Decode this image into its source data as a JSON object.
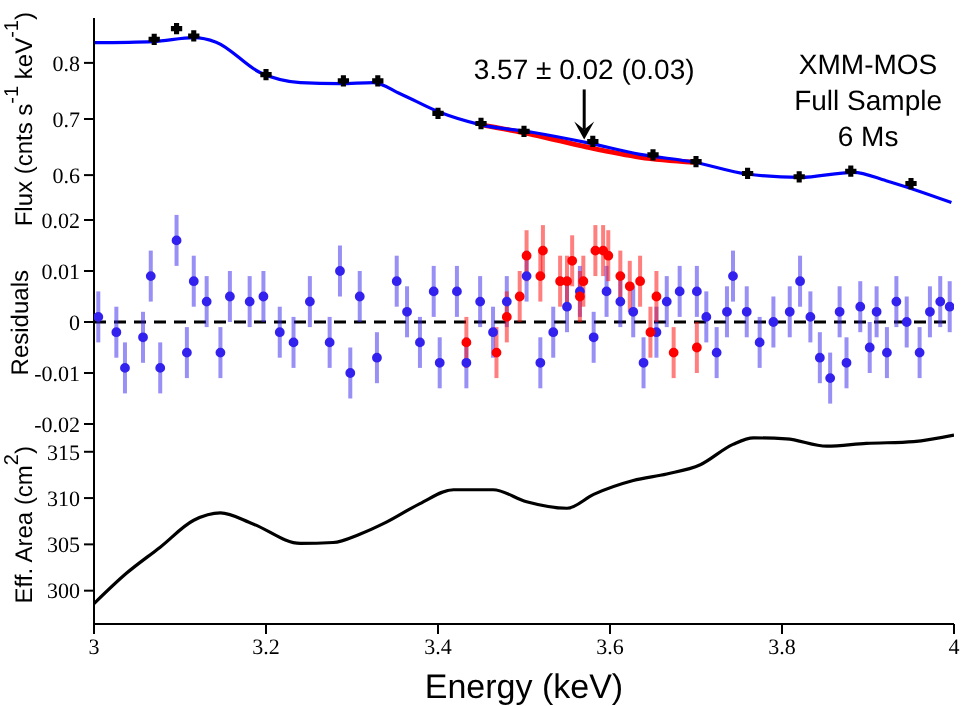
{
  "chart_data": [
    {
      "type": "line",
      "ylabel": "Flux (cnts s$^{-1}$ keV$^{-1}$)",
      "xlim": [
        3,
        4
      ],
      "xticks": [
        3,
        3.2,
        3.4,
        3.6,
        3.8,
        4
      ],
      "ylim": [
        0.52,
        0.88
      ],
      "yticks": [
        0.6,
        0.7,
        0.8
      ],
      "tick_labels": "y",
      "annotations": [
        {
          "text": "3.57 ± 0.02 (0.03)",
          "x": 3.57,
          "y": 0.66
        },
        "XMM-MOS",
        "Full Sample",
        "6 Ms"
      ],
      "series": [
        {
          "type": "scatter",
          "marker": "cross",
          "color": "#000000",
          "x": [
            3.07,
            3.096,
            3.116,
            3.2,
            3.29,
            3.33,
            3.4,
            3.45,
            3.5,
            3.58,
            3.65,
            3.7,
            3.76,
            3.82,
            3.88,
            3.95
          ],
          "values": [
            0.842,
            0.861,
            0.848,
            0.779,
            0.768,
            0.768,
            0.71,
            0.692,
            0.678,
            0.66,
            0.636,
            0.624,
            0.603,
            0.597,
            0.607,
            0.585
          ]
        },
        {
          "color": "#ff0000",
          "x": [
            3.449,
            3.511,
            3.573,
            3.635,
            3.698
          ],
          "values": [
            0.69,
            0.672,
            0.65,
            0.632,
            0.623
          ]
        },
        {
          "color": "#0000ff",
          "x": [
            3.0,
            3.069,
            3.116,
            3.142,
            3.193,
            3.24,
            3.286,
            3.325,
            3.356,
            3.402,
            3.449,
            3.511,
            3.573,
            3.635,
            3.698,
            3.759,
            3.821,
            3.883,
            3.921,
            3.997
          ],
          "values": [
            0.836,
            0.838,
            0.845,
            0.837,
            0.783,
            0.765,
            0.763,
            0.765,
            0.745,
            0.712,
            0.69,
            0.676,
            0.658,
            0.637,
            0.623,
            0.602,
            0.596,
            0.605,
            0.59,
            0.551
          ]
        }
      ]
    },
    {
      "type": "scatter",
      "marker": "circle",
      "ylabel": "Residuals",
      "xlim": [
        3,
        4
      ],
      "xticks": [
        3,
        3.2,
        3.4,
        3.6,
        3.8,
        4
      ],
      "ylim": [
        -0.02,
        0.02
      ],
      "yticks": [
        -0.02,
        -0.01,
        0,
        0.01,
        0.02
      ],
      "tick_labels": "y",
      "ref_lines": [
        {
          "axis": "y",
          "value": 0,
          "color": "#000000",
          "line_style": "dashed"
        }
      ],
      "series": [
        {
          "color": "#3322ee",
          "x": [
            3.005,
            3.026,
            3.036,
            3.057,
            3.066,
            3.077,
            3.096,
            3.108,
            3.116,
            3.131,
            3.147,
            3.158,
            3.181,
            3.197,
            3.216,
            3.232,
            3.251,
            3.274,
            3.286,
            3.298,
            3.309,
            3.329,
            3.352,
            3.364,
            3.379,
            3.395,
            3.402,
            3.422,
            3.433,
            3.449,
            3.464,
            3.48,
            3.503,
            3.519,
            3.534,
            3.55,
            3.565,
            3.581,
            3.596,
            3.612,
            3.627,
            3.639,
            3.654,
            3.666,
            3.681,
            3.701,
            3.712,
            3.724,
            3.736,
            3.743,
            3.759,
            3.774,
            3.79,
            3.809,
            3.821,
            3.833,
            3.844,
            3.856,
            3.867,
            3.875,
            3.891,
            3.902,
            3.91,
            3.922,
            3.933,
            3.945,
            3.96,
            3.972,
            3.984,
            3.995
          ],
          "values": [
            0.001,
            -0.002,
            -0.009,
            -0.003,
            0.009,
            -0.009,
            0.016,
            -0.006,
            0.008,
            0.004,
            -0.006,
            0.005,
            0.004,
            0.005,
            -0.002,
            -0.004,
            0.004,
            -0.004,
            0.01,
            -0.01,
            0.005,
            -0.007,
            0.008,
            0.002,
            -0.004,
            0.006,
            -0.008,
            0.006,
            -0.008,
            0.004,
            -0.002,
            0.004,
            0.009,
            -0.008,
            -0.002,
            0.003,
            0.006,
            -0.003,
            0.006,
            0.004,
            0.002,
            -0.008,
            -0.002,
            0.004,
            0.006,
            0.006,
            0.001,
            -0.006,
            0.002,
            0.009,
            0.002,
            -0.004,
            0,
            0.002,
            0.008,
            0.001,
            -0.007,
            -0.011,
            0.002,
            -0.008,
            0.003,
            -0.005,
            0.002,
            -0.006,
            0.004,
            0,
            -0.006,
            0.002,
            0.004,
            0.003
          ],
          "errors": [
            0.005,
            0.005,
            0.005,
            0.005,
            0.005,
            0.005,
            0.005,
            0.005,
            0.005,
            0.005,
            0.005,
            0.005,
            0.005,
            0.005,
            0.005,
            0.005,
            0.005,
            0.005,
            0.005,
            0.005,
            0.005,
            0.005,
            0.005,
            0.005,
            0.005,
            0.005,
            0.005,
            0.005,
            0.005,
            0.005,
            0.005,
            0.005,
            0.005,
            0.005,
            0.005,
            0.005,
            0.005,
            0.005,
            0.005,
            0.005,
            0.005,
            0.005,
            0.005,
            0.005,
            0.005,
            0.005,
            0.005,
            0.005,
            0.005,
            0.005,
            0.005,
            0.005,
            0.005,
            0.005,
            0.005,
            0.005,
            0.005,
            0.005,
            0.005,
            0.005,
            0.005,
            0.005,
            0.005,
            0.005,
            0.005,
            0.005,
            0.005,
            0.005,
            0.005,
            0.005
          ]
        },
        {
          "color": "#ff0000",
          "x": [
            3.433,
            3.468,
            3.48,
            3.495,
            3.503,
            3.519,
            3.522,
            3.542,
            3.55,
            3.556,
            3.565,
            3.569,
            3.583,
            3.592,
            3.598,
            3.612,
            3.623,
            3.635,
            3.647,
            3.654,
            3.674,
            3.701
          ],
          "values": [
            -0.004,
            -0.006,
            0.001,
            0.005,
            0.013,
            0.009,
            0.014,
            0.008,
            0.008,
            0.012,
            0.005,
            0.008,
            0.014,
            0.014,
            0.013,
            0.009,
            0.007,
            0.008,
            -0.002,
            0.005,
            -0.006,
            -0.005
          ],
          "errors": [
            0.005,
            0.005,
            0.005,
            0.005,
            0.005,
            0.005,
            0.005,
            0.005,
            0.005,
            0.005,
            0.005,
            0.005,
            0.005,
            0.005,
            0.005,
            0.005,
            0.005,
            0.005,
            0.005,
            0.005,
            0.005,
            0.005
          ]
        }
      ]
    },
    {
      "type": "line",
      "ylabel": "Eff. Area (cm$^{2}$)",
      "xlabel": "Energy (keV)",
      "xlim": [
        3,
        4
      ],
      "xticks": [
        3,
        3.2,
        3.4,
        3.6,
        3.8,
        4
      ],
      "ylim": [
        296.4,
        318
      ],
      "yticks": [
        300,
        305,
        310,
        315
      ],
      "series": [
        {
          "color": "#000000",
          "x": [
            3.0,
            3.038,
            3.077,
            3.116,
            3.147,
            3.185,
            3.24,
            3.278,
            3.309,
            3.34,
            3.379,
            3.418,
            3.464,
            3.503,
            3.55,
            3.581,
            3.627,
            3.666,
            3.705,
            3.743,
            3.767,
            3.805,
            3.852,
            3.898,
            3.953,
            4.0
          ],
          "values": [
            298.6,
            301.9,
            304.7,
            307.6,
            308.4,
            307.2,
            305.1,
            305.2,
            306.1,
            307.4,
            309.4,
            310.9,
            310.9,
            309.6,
            308.9,
            310.4,
            311.9,
            312.6,
            313.6,
            315.8,
            316.5,
            316.4,
            315.6,
            315.9,
            316.1,
            316.8
          ]
        }
      ]
    }
  ]
}
